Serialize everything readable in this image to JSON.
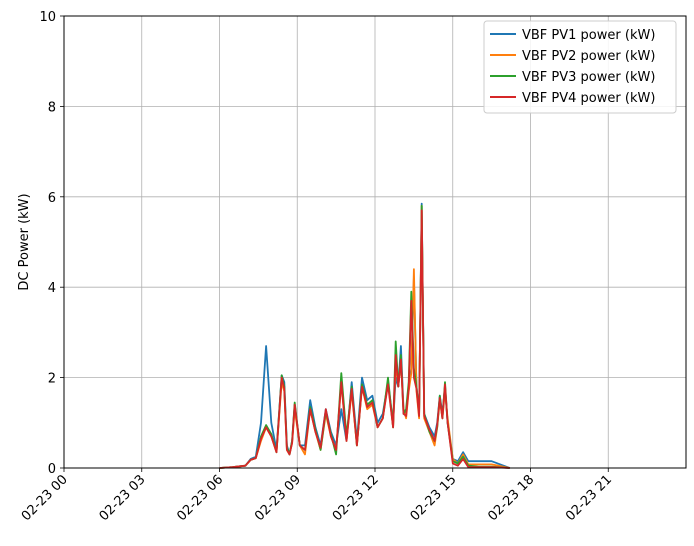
{
  "chart_data": {
    "type": "line",
    "title": "",
    "xlabel": "",
    "ylabel": "DC Power (kW)",
    "xlim": [
      "02-23 00:00",
      "02-24 00:00"
    ],
    "ylim": [
      0,
      10
    ],
    "grid": true,
    "legend_position": "top-right",
    "x_ticks": [
      {
        "value": 0,
        "label": "02-23 00"
      },
      {
        "value": 3,
        "label": "02-23 03"
      },
      {
        "value": 6,
        "label": "02-23 06"
      },
      {
        "value": 9,
        "label": "02-23 09"
      },
      {
        "value": 12,
        "label": "02-23 12"
      },
      {
        "value": 15,
        "label": "02-23 15"
      },
      {
        "value": 18,
        "label": "02-23 18"
      },
      {
        "value": 21,
        "label": "02-23 21"
      }
    ],
    "y_ticks": [
      {
        "value": 0,
        "label": "0"
      },
      {
        "value": 2,
        "label": "2"
      },
      {
        "value": 4,
        "label": "4"
      },
      {
        "value": 6,
        "label": "6"
      },
      {
        "value": 8,
        "label": "8"
      },
      {
        "value": 10,
        "label": "10"
      }
    ],
    "x_hours": [
      6.0,
      6.5,
      7.0,
      7.2,
      7.4,
      7.6,
      7.8,
      8.0,
      8.2,
      8.4,
      8.5,
      8.6,
      8.7,
      8.8,
      8.9,
      9.1,
      9.3,
      9.5,
      9.7,
      9.9,
      10.1,
      10.3,
      10.5,
      10.7,
      10.9,
      11.1,
      11.3,
      11.5,
      11.7,
      11.9,
      12.1,
      12.3,
      12.5,
      12.7,
      12.8,
      12.9,
      13.0,
      13.1,
      13.2,
      13.3,
      13.4,
      13.5,
      13.6,
      13.7,
      13.8,
      13.9,
      14.1,
      14.3,
      14.4,
      14.5,
      14.6,
      14.7,
      14.8,
      15.0,
      15.2,
      15.4,
      15.6,
      16.0,
      16.4,
      16.5,
      17.2
    ],
    "series": [
      {
        "name": "VBF PV1 power (kW)",
        "color": "#1f77b4",
        "values": [
          0,
          0.02,
          0.05,
          0.2,
          0.25,
          1.0,
          2.7,
          1.0,
          0.4,
          2.05,
          1.9,
          0.5,
          0.3,
          0.6,
          1.4,
          0.5,
          0.5,
          1.5,
          0.9,
          0.5,
          1.3,
          0.8,
          0.5,
          1.3,
          0.6,
          1.9,
          0.6,
          2.0,
          1.5,
          1.6,
          1.0,
          1.2,
          1.9,
          1.0,
          2.0,
          1.8,
          2.7,
          1.3,
          1.2,
          1.8,
          2.2,
          4.2,
          1.8,
          1.2,
          5.85,
          1.2,
          0.9,
          0.7,
          1.0,
          1.6,
          1.2,
          1.8,
          1.0,
          0.2,
          0.15,
          0.35,
          0.15,
          0.15,
          0.15,
          0.15,
          0
        ]
      },
      {
        "name": "VBF PV2 power (kW)",
        "color": "#ff7f0e",
        "values": [
          0,
          0.02,
          0.05,
          0.18,
          0.22,
          0.6,
          0.9,
          0.7,
          0.35,
          1.9,
          1.7,
          0.4,
          0.3,
          0.55,
          1.3,
          0.5,
          0.3,
          1.3,
          0.8,
          0.4,
          1.2,
          0.7,
          0.4,
          1.9,
          0.6,
          1.7,
          0.5,
          1.8,
          1.3,
          1.4,
          0.9,
          1.1,
          1.9,
          0.9,
          2.3,
          1.8,
          2.4,
          1.3,
          1.1,
          1.7,
          2.1,
          4.4,
          1.7,
          1.1,
          5.8,
          1.1,
          0.8,
          0.5,
          0.9,
          1.5,
          1.1,
          1.7,
          1.1,
          0.2,
          0.1,
          0.3,
          0.08,
          0.08,
          0.08,
          0.08,
          0
        ]
      },
      {
        "name": "VBF PV3 power (kW)",
        "color": "#2ca02c",
        "values": [
          0,
          0.02,
          0.05,
          0.18,
          0.22,
          0.7,
          0.95,
          0.75,
          0.35,
          2.05,
          1.8,
          0.45,
          0.3,
          0.6,
          1.45,
          0.5,
          0.4,
          1.35,
          0.85,
          0.4,
          1.25,
          0.75,
          0.3,
          2.1,
          0.7,
          1.8,
          0.5,
          1.85,
          1.4,
          1.5,
          0.9,
          1.1,
          2.0,
          0.9,
          2.8,
          1.8,
          2.5,
          1.2,
          1.3,
          1.9,
          3.9,
          2.2,
          1.8,
          1.2,
          5.8,
          1.2,
          0.8,
          0.6,
          0.9,
          1.6,
          1.1,
          1.9,
          1.0,
          0.15,
          0.1,
          0.25,
          0.05,
          0.03,
          0.03,
          0.03,
          0
        ]
      },
      {
        "name": "VBF PV4 power (kW)",
        "color": "#d62728",
        "values": [
          0,
          0.02,
          0.05,
          0.18,
          0.22,
          0.65,
          0.9,
          0.7,
          0.35,
          2.0,
          1.75,
          0.4,
          0.3,
          0.55,
          1.4,
          0.5,
          0.4,
          1.3,
          0.8,
          0.45,
          1.3,
          0.7,
          0.4,
          1.9,
          0.6,
          1.75,
          0.5,
          1.8,
          1.35,
          1.45,
          0.9,
          1.1,
          1.85,
          0.9,
          2.5,
          1.8,
          2.4,
          1.2,
          1.15,
          1.75,
          3.7,
          2.0,
          1.75,
          1.15,
          5.7,
          1.15,
          0.85,
          0.6,
          0.95,
          1.55,
          1.1,
          1.85,
          1.0,
          0.1,
          0.05,
          0.2,
          0.02,
          0.02,
          0.02,
          0.02,
          0
        ]
      }
    ]
  }
}
